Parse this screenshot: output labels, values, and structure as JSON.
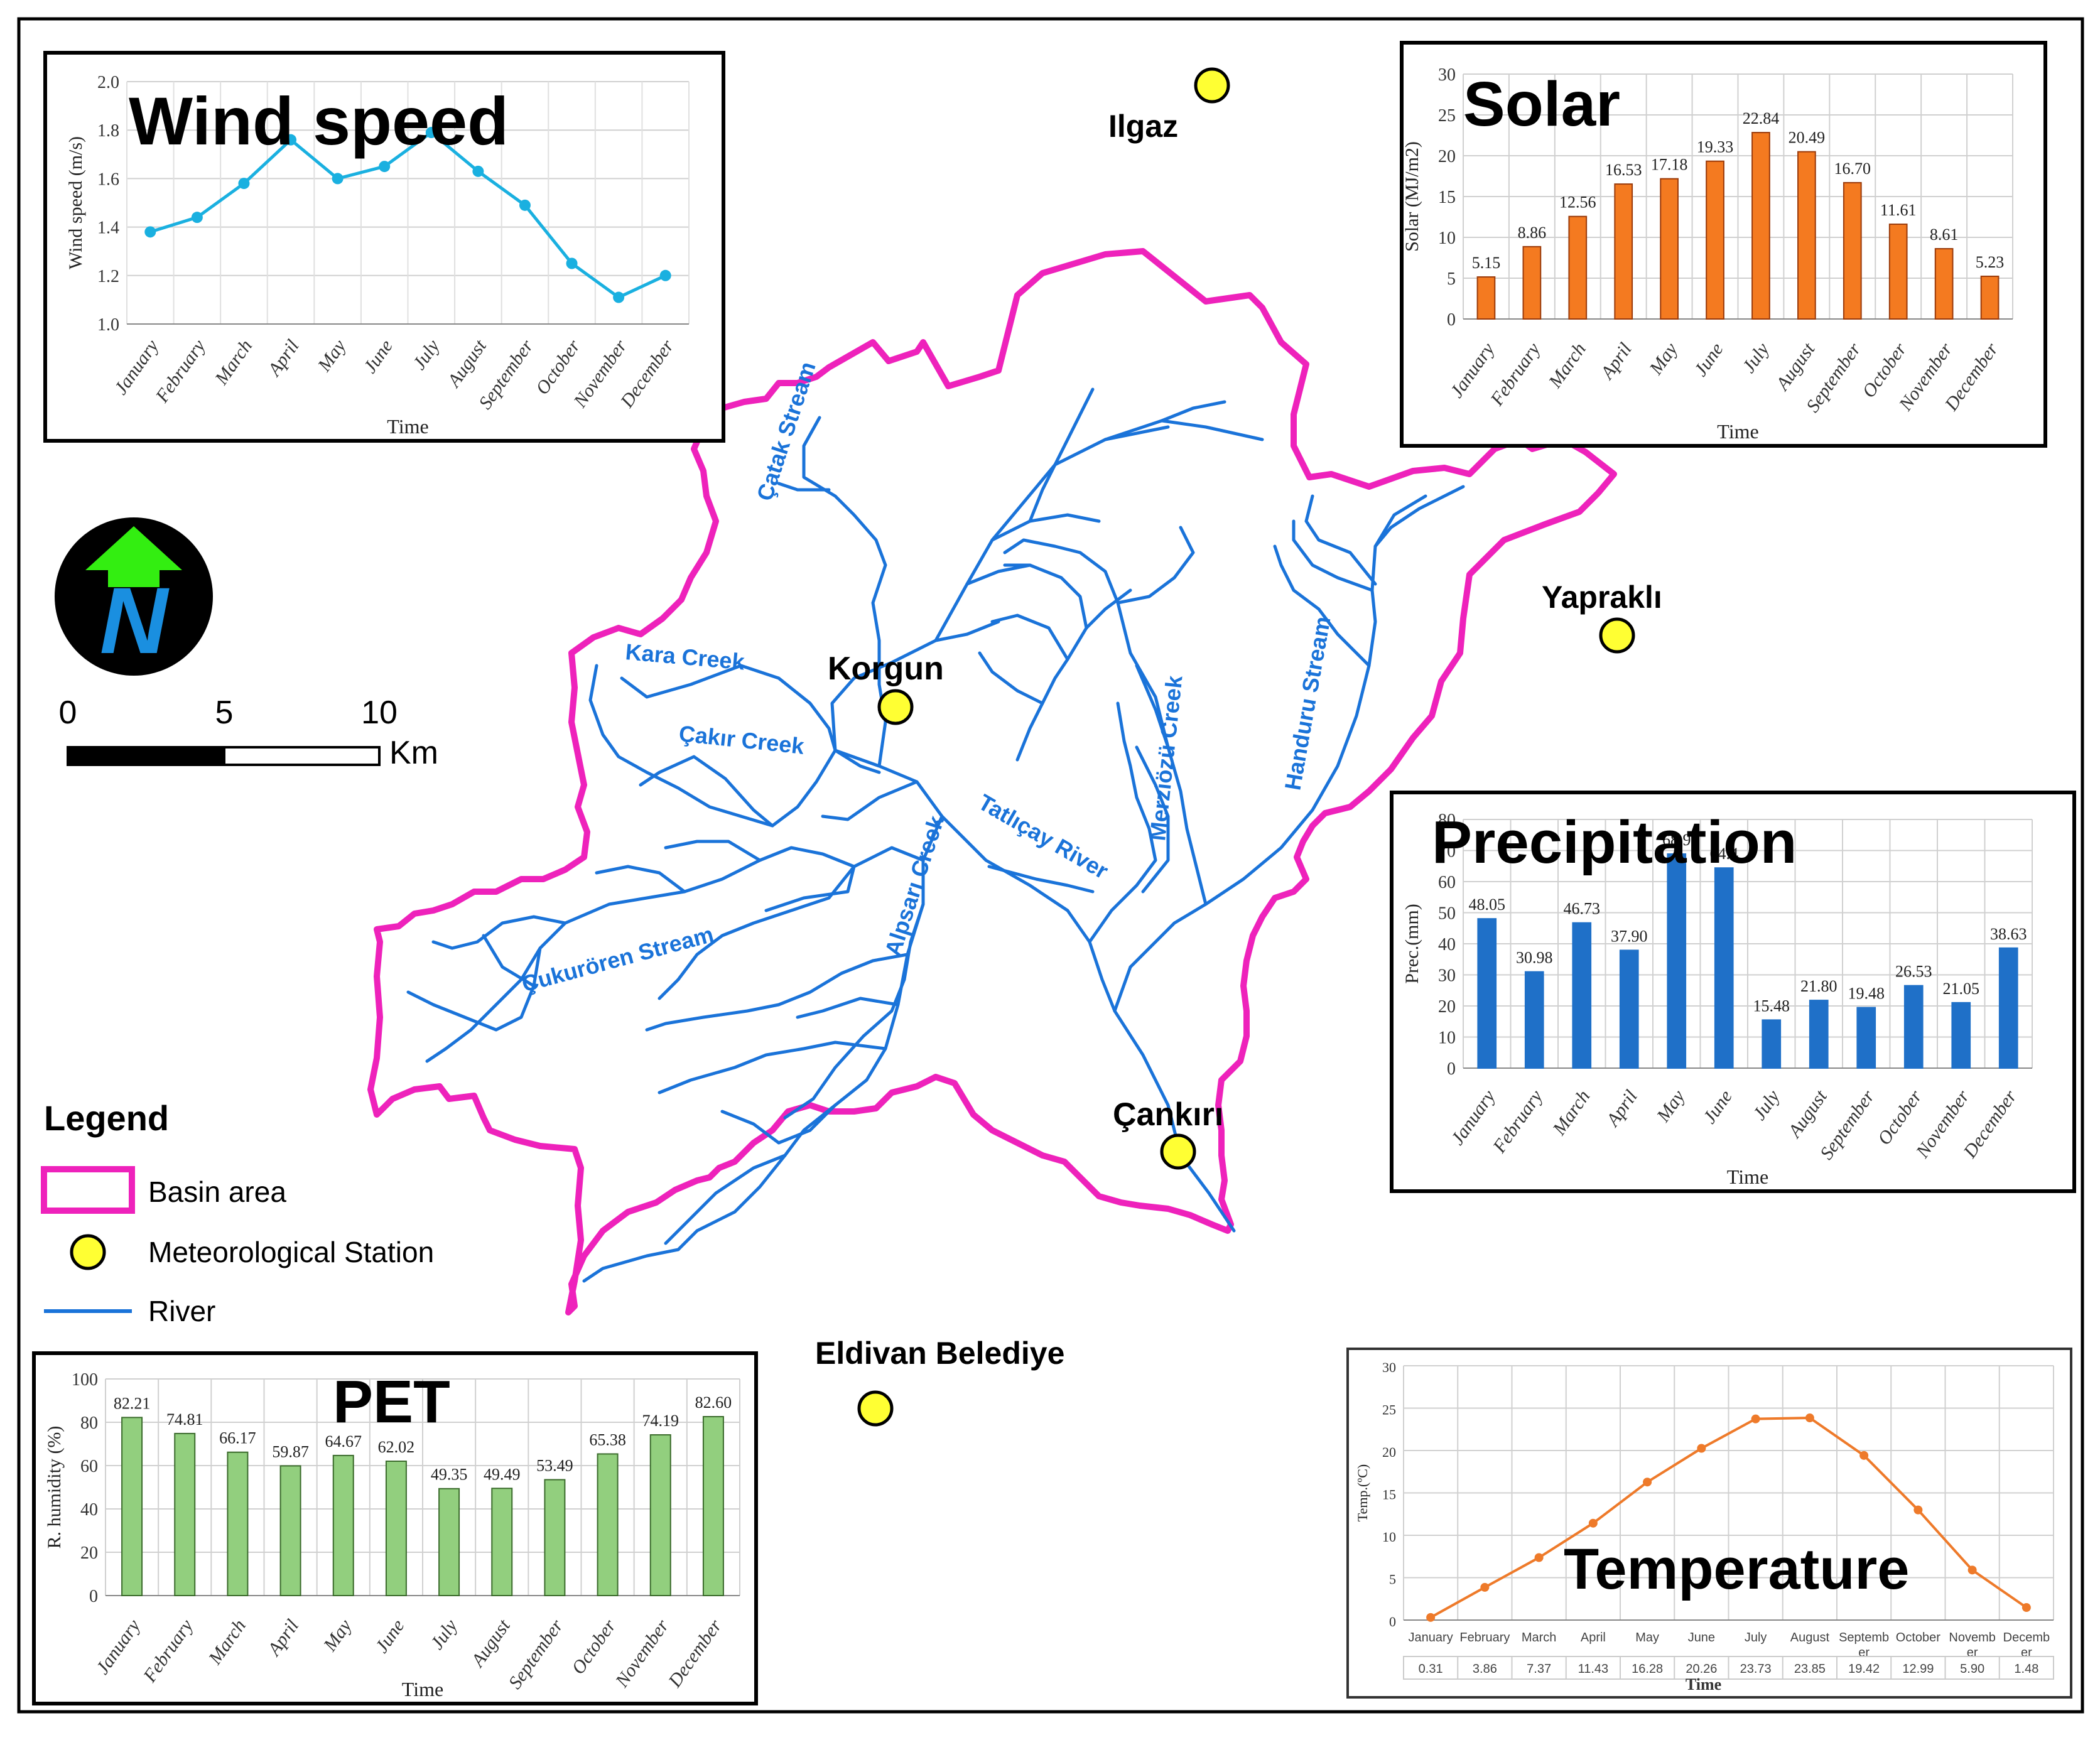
{
  "map": {
    "stations": [
      {
        "name": "Ilgaz"
      },
      {
        "name": "Korgun"
      },
      {
        "name": "Yapraklı"
      },
      {
        "name": "Çankırı"
      },
      {
        "name": "Eldivan Belediye"
      }
    ],
    "rivers": [
      {
        "name": "Çatak Stream"
      },
      {
        "name": "Kara Creek"
      },
      {
        "name": "Çakır Creek"
      },
      {
        "name": "Alpsarı Creek"
      },
      {
        "name": "Tatlıçay River"
      },
      {
        "name": "Merziözü Creek"
      },
      {
        "name": "Handuru Stream"
      },
      {
        "name": "Çukurören Stream"
      }
    ],
    "scale_bar": {
      "ticks": [
        "0",
        "5",
        "10"
      ],
      "unit": "Km"
    },
    "north_arrow": {
      "letter": "N",
      "icon": "north-arrow-icon"
    },
    "legend": {
      "title": "Legend",
      "items": [
        {
          "label": "Basin area",
          "icon": "basin-area-symbol"
        },
        {
          "label": "Meteorological Station",
          "icon": "station-symbol"
        },
        {
          "label": "River",
          "icon": "river-line-symbol"
        }
      ]
    },
    "colors": {
      "basin": "#ee22bb",
      "river": "#1a73d9",
      "station": "#ffff33"
    }
  },
  "chart_data": [
    {
      "id": "wind",
      "type": "line",
      "title": "Wind speed",
      "xlabel": "Time",
      "ylabel": "Wind speed (m/s)",
      "categories": [
        "January",
        "February",
        "March",
        "April",
        "May",
        "June",
        "July",
        "August",
        "September",
        "October",
        "November",
        "December"
      ],
      "values": [
        1.38,
        1.44,
        1.58,
        1.76,
        1.6,
        1.65,
        1.79,
        1.63,
        1.49,
        1.25,
        1.11,
        1.2
      ],
      "ylim": [
        1.0,
        2.0
      ],
      "yticks": [
        "1.0",
        "1.2",
        "1.4",
        "1.6",
        "1.8",
        "2.0"
      ],
      "color": "#1ab0e0",
      "grid": true
    },
    {
      "id": "solar",
      "type": "bar",
      "title": "Solar",
      "xlabel": "Time",
      "ylabel": "Solar (MJ/m2)",
      "categories": [
        "January",
        "February",
        "March",
        "April",
        "May",
        "June",
        "July",
        "August",
        "September",
        "October",
        "November",
        "December"
      ],
      "values": [
        5.15,
        8.86,
        12.56,
        16.53,
        17.18,
        19.33,
        22.84,
        20.49,
        16.7,
        11.61,
        8.61,
        5.23
      ],
      "value_labels": [
        "5.15",
        "8.86",
        "12.56",
        "16.53",
        "17.18",
        "19.33",
        "22.84",
        "20.49",
        "16.70",
        "11.61",
        "8.61",
        "5.23"
      ],
      "ylim": [
        0,
        30
      ],
      "yticks": [
        "0",
        "5",
        "10",
        "15",
        "20",
        "25",
        "30"
      ],
      "color": "#f47a20",
      "grid": true
    },
    {
      "id": "prec",
      "type": "bar",
      "title": "Precipitation",
      "xlabel": "Time",
      "ylabel": "Prec.(mm)",
      "categories": [
        "January",
        "February",
        "March",
        "April",
        "May",
        "June",
        "July",
        "August",
        "September",
        "October",
        "November",
        "December"
      ],
      "values": [
        48.05,
        30.98,
        46.73,
        37.9,
        68.9,
        64.4,
        15.48,
        21.8,
        19.48,
        26.53,
        21.05,
        38.63
      ],
      "value_labels": [
        "48.05",
        "30.98",
        "46.73",
        "37.90",
        "68.9",
        "64.4",
        "15.48",
        "21.80",
        "19.48",
        "26.53",
        "21.05",
        "38.63"
      ],
      "ylim": [
        0,
        80
      ],
      "yticks": [
        "0",
        "10",
        "20",
        "30",
        "40",
        "50",
        "60",
        "70",
        "80"
      ],
      "color": "#1f70c8",
      "grid": true
    },
    {
      "id": "pet",
      "type": "bar",
      "title": "PET",
      "xlabel": "Time",
      "ylabel": "R. humidity (%)",
      "categories": [
        "January",
        "February",
        "March",
        "April",
        "May",
        "June",
        "July",
        "August",
        "September",
        "October",
        "November",
        "December"
      ],
      "values": [
        82.21,
        74.81,
        66.17,
        59.87,
        64.67,
        62.02,
        49.35,
        49.49,
        53.49,
        65.38,
        74.19,
        82.6
      ],
      "value_labels": [
        "82.21",
        "74.81",
        "66.17",
        "59.87",
        "64.67",
        "62.02",
        "49.35",
        "49.49",
        "53.49",
        "65.38",
        "74.19",
        "82.60"
      ],
      "ylim": [
        0,
        100
      ],
      "yticks": [
        "0",
        "20",
        "40",
        "60",
        "80",
        "100"
      ],
      "color": "#92cf7e",
      "grid": true
    },
    {
      "id": "temp",
      "type": "line",
      "title": "Temperature",
      "xlabel": "Time",
      "ylabel": "Temp.(ºC)",
      "categories": [
        "January",
        "February",
        "March",
        "April",
        "May",
        "June",
        "July",
        "August",
        "Septemb er",
        "October",
        "Novemb er",
        "Decemb er"
      ],
      "values": [
        0.31,
        3.86,
        7.37,
        11.43,
        16.28,
        20.26,
        23.73,
        23.85,
        19.42,
        12.99,
        5.9,
        1.48
      ],
      "value_labels": [
        "0.31",
        "3.86",
        "7.37",
        "11.43",
        "16.28",
        "20.26",
        "23.73",
        "23.85",
        "19.42",
        "12.99",
        "5.90",
        "1.48"
      ],
      "ylim": [
        0,
        30
      ],
      "yticks": [
        "0",
        "5",
        "10",
        "15",
        "20",
        "25",
        "30"
      ],
      "color": "#ee7a2a",
      "grid": true
    }
  ]
}
